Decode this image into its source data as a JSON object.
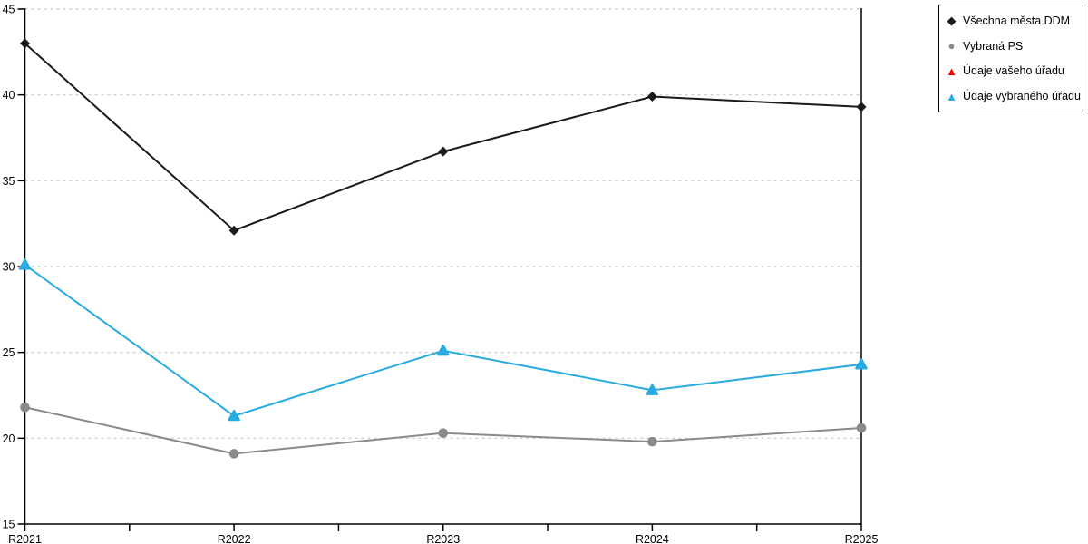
{
  "chart_data": {
    "type": "line",
    "x": [
      "R2021",
      "R2022",
      "R2023",
      "R2024",
      "R2025"
    ],
    "ylim": [
      15,
      45
    ],
    "yticks": [
      15,
      20,
      25,
      30,
      35,
      40,
      45
    ],
    "grid": "horizontal-dashed",
    "legend_position": "top-right",
    "series": [
      {
        "id": "vsechna-mesta-ddm",
        "name": "Všechna města DDM",
        "marker": "diamond",
        "color": "#1a1a1a",
        "values": [
          43.0,
          32.1,
          36.7,
          39.9,
          39.3
        ]
      },
      {
        "id": "vybrana-ps",
        "name": "Vybraná PS",
        "marker": "circle",
        "color": "#8a8a8a",
        "values": [
          21.8,
          19.1,
          20.3,
          19.8,
          20.6
        ]
      },
      {
        "id": "udaje-vaseho-uradu",
        "name": "Údaje vašeho úřadu",
        "marker": "triangle",
        "color": "#f40000",
        "values": []
      },
      {
        "id": "udaje-vybraneho-uradu",
        "name": "Údaje vybraného úřadu",
        "marker": "triangle",
        "color": "#29abe2",
        "values": [
          30.1,
          21.3,
          25.1,
          22.8,
          24.3
        ]
      }
    ],
    "colors": {
      "grid": "#c8c8c8",
      "axis": "#000000",
      "background": "#ffffff"
    }
  }
}
